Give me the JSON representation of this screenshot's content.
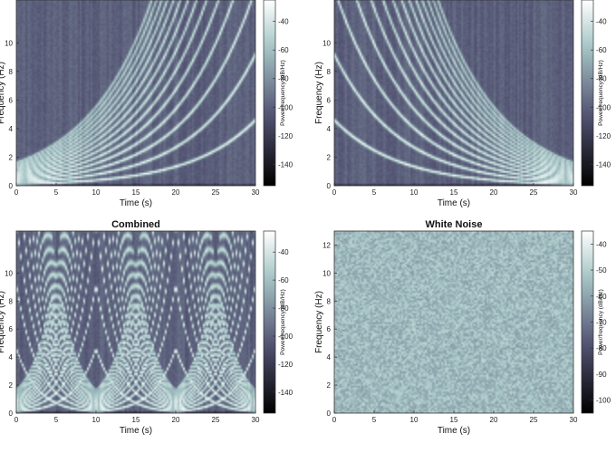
{
  "chart_data": [
    {
      "type": "heatmap",
      "title": "",
      "xlabel": "Time (s)",
      "ylabel": "Frequency (Hz)",
      "colorbar_label": "Power/frequency (dB/Hz)",
      "xlim": [
        0,
        30
      ],
      "ylim": [
        0,
        13
      ],
      "xticks": [
        0,
        5,
        10,
        15,
        20,
        25,
        30
      ],
      "yticks": [
        0,
        2,
        4,
        6,
        8,
        10
      ],
      "clim": [
        -155,
        -25
      ],
      "cticks": [
        -40,
        -60,
        -80,
        -100,
        -120,
        -140
      ],
      "content": "rising harmonic chirps (exponential sweep, period 30 s) over noise floor",
      "sweep": "up",
      "background_db": -100
    },
    {
      "type": "heatmap",
      "title": "",
      "xlabel": "Time (s)",
      "ylabel": "Frequency (Hz)",
      "colorbar_label": "Power/frequency (dB/Hz)",
      "xlim": [
        0,
        30
      ],
      "ylim": [
        0,
        13
      ],
      "xticks": [
        0,
        5,
        10,
        15,
        20,
        25,
        30
      ],
      "yticks": [
        0,
        2,
        4,
        6,
        8,
        10
      ],
      "clim": [
        -155,
        -25
      ],
      "cticks": [
        -40,
        -60,
        -80,
        -100,
        -120,
        -140
      ],
      "content": "falling harmonic chirps (exponential sweep, period 30 s) over noise floor",
      "sweep": "down",
      "background_db": -100
    },
    {
      "type": "heatmap",
      "title": "Combined",
      "xlabel": "Time (s)",
      "ylabel": "Frequency (Hz)",
      "colorbar_label": "Power/frequency (dB/Hz)",
      "xlim": [
        0,
        30
      ],
      "ylim": [
        0,
        13
      ],
      "xticks": [
        0,
        5,
        10,
        15,
        20,
        25,
        30
      ],
      "yticks": [
        0,
        2,
        4,
        6,
        8,
        10
      ],
      "clim": [
        -155,
        -25
      ],
      "cticks": [
        -40,
        -60,
        -80,
        -100,
        -120,
        -140
      ],
      "content": "rising and falling harmonic chirps, period 10 s, crossing pattern",
      "sweep": "combined",
      "background_db": -100
    },
    {
      "type": "heatmap",
      "title": "White Noise",
      "xlabel": "Time (s)",
      "ylabel": "Frequency (Hz)",
      "colorbar_label": "Power/frequency (dB/Hz)",
      "xlim": [
        0,
        30
      ],
      "ylim": [
        0,
        13
      ],
      "xticks": [
        0,
        5,
        10,
        15,
        20,
        25,
        30
      ],
      "yticks": [
        0,
        2,
        4,
        6,
        8,
        10,
        12
      ],
      "clim": [
        -105,
        -35
      ],
      "cticks": [
        -40,
        -50,
        -60,
        -70,
        -80,
        -90,
        -100
      ],
      "content": "uniform white noise spectrogram",
      "sweep": "noise",
      "background_db": -55
    }
  ]
}
